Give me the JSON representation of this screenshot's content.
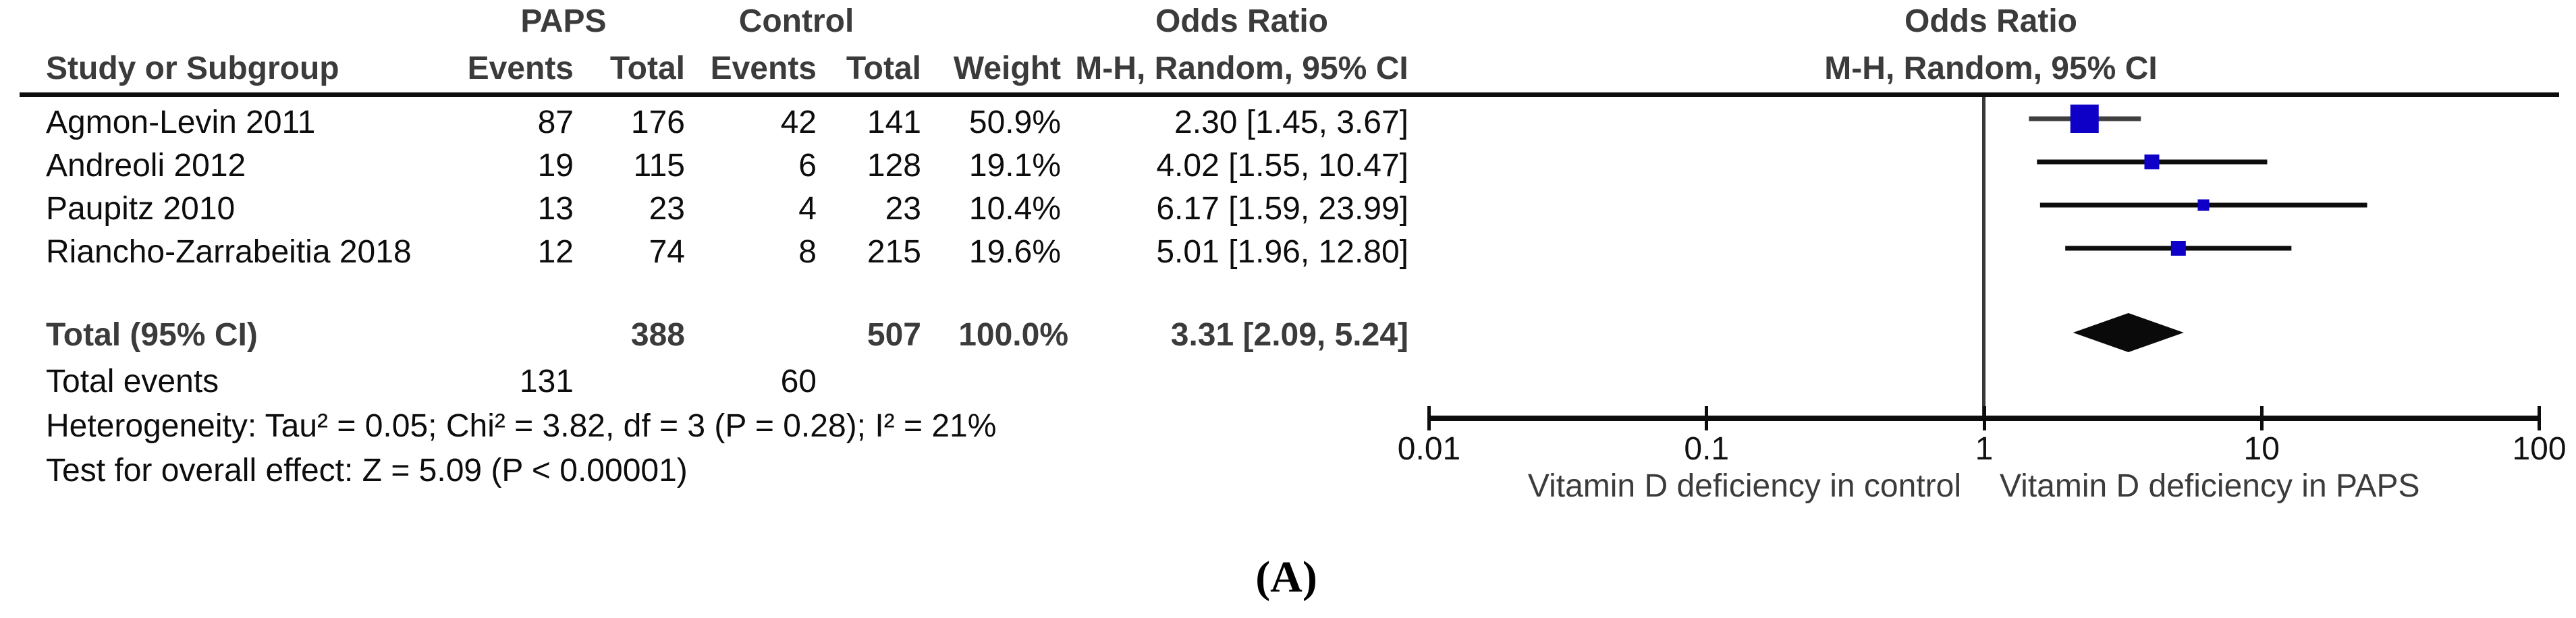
{
  "figure": {
    "panel_label": "(A)",
    "colors": {
      "text_ink": "#0d0d0d",
      "text_gray": "#3b3b3b",
      "marker_blue": "#0f00c8",
      "ci_line_first_study": "#3f3f3f",
      "ci_line": "#0d0d0d",
      "diamond_black": "#0a0a0a",
      "axis_line": "#0d0d0d"
    },
    "table": {
      "group_headers": {
        "paps": "PAPS",
        "control": "Control"
      },
      "column_headers": {
        "study": "Study or Subgroup",
        "events_paps": "Events",
        "total_paps": "Total",
        "events_control": "Events",
        "total_control": "Total",
        "weight": "Weight"
      },
      "or_header_table": {
        "line1": "Odds Ratio",
        "line2": "M-H, Random, 95% CI"
      },
      "or_header_plot": {
        "line1": "Odds Ratio",
        "line2": "M-H, Random, 95% CI"
      },
      "studies": [
        {
          "name": "Agmon-Levin 2011",
          "events1": "87",
          "total1": "176",
          "events2": "42",
          "total2": "141",
          "weight": "50.9%",
          "or_text": "2.30 [1.45, 3.67]"
        },
        {
          "name": "Andreoli 2012",
          "events1": "19",
          "total1": "115",
          "events2": "6",
          "total2": "128",
          "weight": "19.1%",
          "or_text": "4.02 [1.55, 10.47]"
        },
        {
          "name": "Paupitz 2010",
          "events1": "13",
          "total1": "23",
          "events2": "4",
          "total2": "23",
          "weight": "10.4%",
          "or_text": "6.17 [1.59, 23.99]"
        },
        {
          "name": "Riancho-Zarrabeitia 2018",
          "events1": "12",
          "total1": "74",
          "events2": "8",
          "total2": "215",
          "weight": "19.6%",
          "or_text": "5.01 [1.96, 12.80]"
        }
      ],
      "total_row": {
        "label": "Total (95% CI)",
        "total1": "388",
        "total2": "507",
        "weight": "100.0%",
        "or_text": "3.31 [2.09, 5.24]"
      },
      "total_events": {
        "label": "Total events",
        "events1": "131",
        "events2": "60"
      },
      "heterogeneity": "Heterogeneity: Tau² = 0.05; Chi² = 3.82, df = 3 (P = 0.28); I² = 21%",
      "overall_effect": "Test for overall effect: Z = 5.09 (P < 0.00001)"
    },
    "axis": {
      "tick_labels": [
        "0.01",
        "0.1",
        "1",
        "10",
        "100"
      ],
      "label_left": "Vitamin D deficiency in control",
      "label_right": "Vitamin D deficiency in PAPS"
    }
  },
  "chart_data": {
    "type": "forest",
    "title": "Odds Ratio",
    "effect_measure": "M-H, Random, 95% CI",
    "x_scale": "log",
    "xlim": [
      0.01,
      100
    ],
    "x_ticks": [
      0.01,
      0.1,
      1,
      10,
      100
    ],
    "studies": [
      {
        "label": "Agmon-Levin 2011",
        "or": 2.3,
        "ci": [
          1.45,
          3.67
        ],
        "weight_pct": 50.9
      },
      {
        "label": "Andreoli 2012",
        "or": 4.02,
        "ci": [
          1.55,
          10.47
        ],
        "weight_pct": 19.1
      },
      {
        "label": "Paupitz 2010",
        "or": 6.17,
        "ci": [
          1.59,
          23.99
        ],
        "weight_pct": 10.4
      },
      {
        "label": "Riancho-Zarrabeitia 2018",
        "or": 5.01,
        "ci": [
          1.96,
          12.8
        ],
        "weight_pct": 19.6
      }
    ],
    "total": {
      "label": "Total (95% CI)",
      "or": 3.31,
      "ci": [
        2.09,
        5.24
      ],
      "weight_pct": 100.0
    },
    "heterogeneity": {
      "tau2": 0.05,
      "chi2": 3.82,
      "df": 3,
      "p": 0.28,
      "i2_pct": 21
    },
    "overall_effect": {
      "z": 5.09,
      "p": "< 0.00001"
    },
    "null_line": 1,
    "axis_label_left": "Vitamin D deficiency in control",
    "axis_label_right": "Vitamin D deficiency in PAPS"
  }
}
